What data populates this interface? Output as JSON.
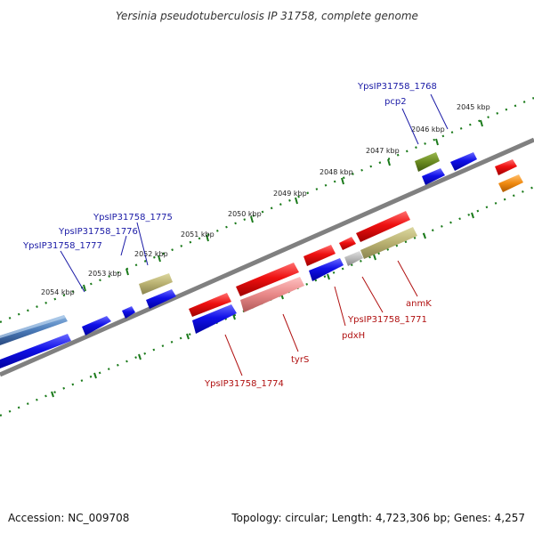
{
  "title": "Yersinia pseudotuberculosis IP 31758, complete genome",
  "footer": {
    "accession": "Accession: NC_009708",
    "summary": "Topology: circular; Length: 4,723,306 bp; Genes: 4,257"
  },
  "ticks": [
    "2054 kbp",
    "2053 kbp",
    "2052 kbp",
    "2051 kbp",
    "2050 kbp",
    "2049 kbp",
    "2048 kbp",
    "2047 kbp",
    "2046 kbp",
    "2045 kbp"
  ],
  "gene_labels_forward": [
    "YpsIP31758_1768",
    "pcp2",
    "YpsIP31758_1775",
    "YpsIP31758_1776",
    "YpsIP31758_1777"
  ],
  "gene_labels_reverse": [
    "anmK",
    "YpsIP31758_1771",
    "pdxH",
    "tyrS",
    "YpsIP31758_1774"
  ],
  "colors": {
    "backbone": "#808080",
    "forward_gene": "#1414e0",
    "reverse_gene": "#e01414",
    "olive": "#b8b070",
    "dark_olive": "#6a8a20",
    "steel_blue": "#4a7ab8",
    "pink": "#e88888",
    "grey": "#b8b8b8",
    "orange": "#f08a10",
    "tick_green": "#1a7a1a"
  }
}
